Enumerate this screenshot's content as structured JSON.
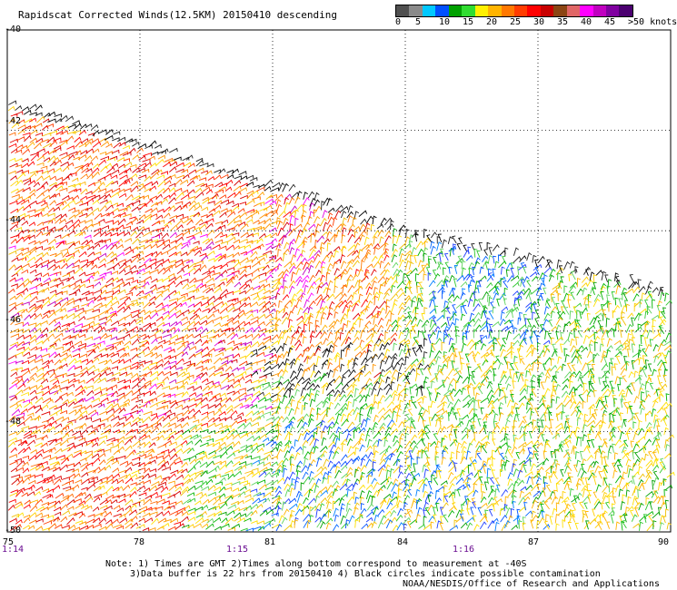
{
  "header": {
    "title": "Rapidscat Corrected Winds(12.5KM) 20150410 descending"
  },
  "legend": {
    "unit_suffix": "knots",
    "bins": [
      {
        "color": "#505050"
      },
      {
        "color": "#8a8a8a"
      },
      {
        "color": "#00c8ff"
      },
      {
        "color": "#0050ff"
      },
      {
        "color": "#00a000"
      },
      {
        "color": "#30dc30"
      },
      {
        "color": "#fff000"
      },
      {
        "color": "#ffb400"
      },
      {
        "color": "#ff7800"
      },
      {
        "color": "#ff3c00"
      },
      {
        "color": "#ff0000"
      },
      {
        "color": "#c80000"
      },
      {
        "color": "#8b4513"
      },
      {
        "color": "#e06666"
      },
      {
        "color": "#ff00ff"
      },
      {
        "color": "#c000c0"
      },
      {
        "color": "#8000a0"
      },
      {
        "color": "#4b0070"
      }
    ],
    "tick_labels": [
      "0",
      "5",
      "10",
      "15",
      "20",
      "25",
      "30",
      "35",
      "40",
      "45",
      ">50 knots"
    ]
  },
  "map": {
    "lat_labels": [
      "-40",
      "-42",
      "-44",
      "-46",
      "-48",
      "-50"
    ],
    "lon_labels": [
      "75",
      "78",
      "81",
      "84",
      "87",
      "90"
    ],
    "time_labels": [
      "1:14",
      "1:15",
      "1:16"
    ],
    "swath_edge_lat_at_lon": {
      "lon": [
        75,
        81,
        84,
        90
      ],
      "lat": [
        -41.4,
        -43.1,
        -44.0,
        -45.2
      ]
    }
  },
  "footer": {
    "note_line1": "Note: 1) Times are GMT 2)Times along bottom correspond to measurement at -40S",
    "note_line2": "3)Data buffer is 22 hrs from 20150410 4) Black circles indicate possible contamination",
    "credit": "NOAA/NESDIS/Office of Research and Applications"
  },
  "colors": {
    "grid": "#000000",
    "time_label": "#6a0d91"
  }
}
